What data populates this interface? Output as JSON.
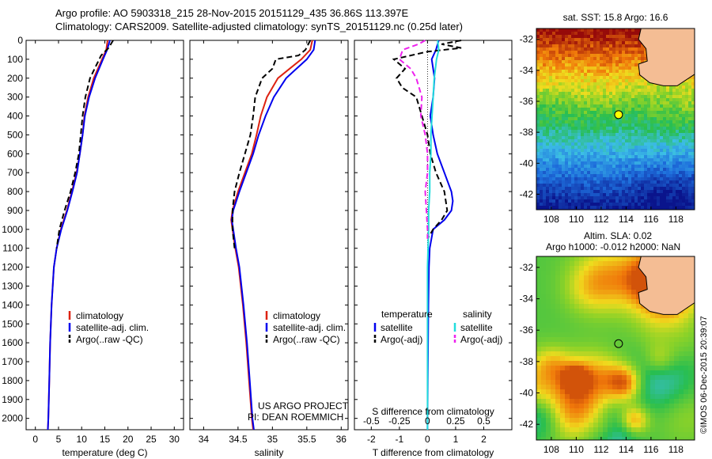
{
  "header": {
    "line1": "Argo profile: AO 5903318_215 28-Nov-2015 20151129_435 36.86S 113.397E",
    "line2": "Climatology: CARS2009. Satellite-adjusted climatology: synTS_20151129.nc (0.25d later)"
  },
  "colors": {
    "climatology": "#dd2211",
    "satellite": "#0000ee",
    "argo": "#000000",
    "salinity_satellite": "#22dddd",
    "salinity_argo": "#ee22ee",
    "land": "#f4bd94"
  },
  "chart_data": [
    {
      "type": "line",
      "id": "temperature_profile",
      "xlabel": "temperature (deg C)",
      "ylabel": "",
      "xlim": [
        -2,
        32
      ],
      "ylim": [
        2060,
        0
      ],
      "xticks": [
        0,
        5,
        10,
        15,
        20,
        25,
        30
      ],
      "yticks": [
        0,
        100,
        200,
        300,
        400,
        500,
        600,
        700,
        800,
        900,
        1000,
        1100,
        1200,
        1300,
        1400,
        1500,
        1600,
        1700,
        1800,
        1900,
        2000
      ],
      "legend_position": "lower-center",
      "series": [
        {
          "name": "climatology",
          "color_key": "climatology",
          "dash": "solid",
          "depth": [
            0,
            50,
            100,
            200,
            300,
            400,
            500,
            600,
            700,
            800,
            900,
            1000,
            1100,
            1200,
            1400,
            1600,
            1800,
            2000,
            2060
          ],
          "values": [
            15.6,
            15.3,
            14.4,
            12.6,
            11.4,
            10.6,
            10.2,
            9.6,
            8.9,
            7.9,
            6.8,
            5.5,
            4.6,
            4.0,
            3.5,
            3.2,
            3.0,
            2.8,
            2.7
          ]
        },
        {
          "name": "satellite-adj. clim.",
          "color_key": "satellite",
          "dash": "solid",
          "depth": [
            0,
            50,
            100,
            200,
            300,
            400,
            500,
            600,
            700,
            800,
            900,
            1000,
            1100,
            1200,
            1400,
            1600,
            1800,
            2000,
            2060
          ],
          "values": [
            16.1,
            15.5,
            14.6,
            12.9,
            11.6,
            10.7,
            10.2,
            9.6,
            9.0,
            8.0,
            6.9,
            5.6,
            4.6,
            4.0,
            3.5,
            3.2,
            3.0,
            2.8,
            2.7
          ]
        },
        {
          "name": "Argo(..raw -QC)",
          "color_key": "argo",
          "dash": "dashed",
          "depth": [
            0,
            40,
            80,
            150,
            200,
            300,
            400,
            500,
            600,
            700,
            800,
            900,
            1000,
            1100
          ],
          "values": [
            16.8,
            15.8,
            14.2,
            12.8,
            11.8,
            10.8,
            10.2,
            9.8,
            9.4,
            8.6,
            7.6,
            6.3,
            5.2,
            4.6
          ]
        }
      ]
    },
    {
      "type": "line",
      "id": "salinity_profile",
      "xlabel": "salinity",
      "ylabel": "",
      "xlim": [
        33.8,
        36.1
      ],
      "ylim": [
        2060,
        0
      ],
      "xticks": [
        34,
        34.5,
        35,
        35.5,
        36
      ],
      "legend_position": "lower-center",
      "series": [
        {
          "name": "climatology",
          "color_key": "climatology",
          "dash": "solid",
          "depth": [
            0,
            50,
            100,
            150,
            200,
            300,
            400,
            500,
            600,
            700,
            800,
            900,
            950,
            1000,
            1100,
            1200,
            1400,
            1600,
            1800,
            2000,
            2060
          ],
          "values": [
            35.58,
            35.55,
            35.42,
            35.25,
            35.08,
            34.92,
            34.83,
            34.77,
            34.7,
            34.6,
            34.5,
            34.42,
            34.4,
            34.42,
            34.46,
            34.51,
            34.57,
            34.62,
            34.66,
            34.7,
            34.72
          ]
        },
        {
          "name": "satellite-adj. clim.",
          "color_key": "satellite",
          "dash": "solid",
          "depth": [
            0,
            50,
            100,
            150,
            200,
            300,
            400,
            500,
            600,
            700,
            800,
            900,
            950,
            1000,
            1100,
            1200,
            1400,
            1600,
            1800,
            2000,
            2060
          ],
          "values": [
            35.62,
            35.6,
            35.5,
            35.35,
            35.2,
            35.02,
            34.9,
            34.8,
            34.72,
            34.62,
            34.52,
            34.43,
            34.41,
            34.43,
            34.47,
            34.52,
            34.58,
            34.63,
            34.67,
            34.71,
            34.73
          ]
        },
        {
          "name": "Argo(..raw -QC)",
          "color_key": "argo",
          "dash": "dashed",
          "depth": [
            0,
            50,
            80,
            100,
            150,
            200,
            300,
            400,
            500,
            600,
            700,
            800,
            900,
            1000,
            1100
          ],
          "values": [
            35.55,
            35.48,
            35.38,
            35.05,
            35.0,
            34.85,
            34.75,
            34.72,
            34.68,
            34.6,
            34.52,
            34.45,
            34.42,
            34.42,
            34.45
          ]
        }
      ]
    },
    {
      "type": "line",
      "id": "difference_profile",
      "xlabel": "T difference from climatology",
      "xlabel_top": "S difference from climatology",
      "ylabel": "",
      "xlim": [
        -2.6,
        3.0
      ],
      "ylim": [
        2060,
        0
      ],
      "xticks": [
        -2,
        -1,
        0,
        1,
        2
      ],
      "s_xticks": [
        -0.5,
        -0.25,
        0,
        0.25,
        0.5
      ],
      "s_xticks_text": [
        "-0.5",
        "-0.25",
        "0",
        "0.25",
        "0.5"
      ],
      "legend_position": "lower-center",
      "legend_headers": [
        "temperature",
        "salinity"
      ],
      "series": [
        {
          "name": "satellite",
          "group": "temperature",
          "color_key": "satellite",
          "dash": "solid",
          "depth": [
            0,
            50,
            100,
            200,
            300,
            400,
            500,
            600,
            700,
            800,
            850,
            900,
            950,
            1000,
            1100,
            1200,
            1400,
            1600,
            1800,
            2000,
            2060
          ],
          "values": [
            0.4,
            0.3,
            0.15,
            0.25,
            0.2,
            0.1,
            0.2,
            0.35,
            0.6,
            0.85,
            0.9,
            0.85,
            0.6,
            0.2,
            0.08,
            0.05,
            0.03,
            0.02,
            0.01,
            0.0,
            0.0
          ]
        },
        {
          "name": "Argo(-adj)",
          "group": "temperature",
          "color_key": "argo",
          "dash": "dashed",
          "depth": [
            0,
            20,
            40,
            60,
            100,
            150,
            200,
            250,
            300,
            400,
            500,
            600,
            700,
            800,
            900,
            950,
            1000,
            1050
          ],
          "values": [
            1.2,
            0.5,
            1.2,
            0.0,
            -1.2,
            -0.8,
            -1.1,
            -0.9,
            -0.4,
            -0.2,
            0.0,
            0.1,
            0.3,
            0.6,
            0.7,
            0.5,
            0.2,
            0.0
          ]
        },
        {
          "name": "satellite",
          "group": "salinity",
          "color_key": "salinity_satellite",
          "dash": "solid",
          "depth": [
            0,
            50,
            100,
            200,
            300,
            400,
            500,
            600,
            700,
            800,
            900,
            1000,
            1200,
            1400,
            1600,
            1800,
            2000,
            2060
          ],
          "values": [
            0.09,
            0.1,
            0.08,
            0.06,
            0.05,
            0.04,
            0.03,
            0.03,
            0.02,
            0.02,
            0.01,
            0.01,
            0.0,
            0.0,
            0.0,
            0.0,
            0.0,
            0.0
          ]
        },
        {
          "name": "Argo(-adj)",
          "group": "salinity",
          "color_key": "salinity_argo",
          "dash": "dashed",
          "depth": [
            0,
            20,
            50,
            100,
            150,
            200,
            300,
            400,
            500,
            600,
            700,
            800,
            900,
            1000,
            1050
          ],
          "values": [
            -0.02,
            -0.08,
            -0.22,
            -0.25,
            -0.15,
            -0.1,
            -0.05,
            -0.06,
            -0.02,
            0.0,
            0.0,
            -0.02,
            -0.01,
            0.0,
            0.0
          ]
        }
      ]
    },
    {
      "type": "heatmap",
      "id": "sst_map",
      "title": "sat. SST: 15.8  Argo: 16.6",
      "xticks": [
        108,
        110,
        112,
        114,
        116,
        118
      ],
      "yticks": [
        -32,
        -34,
        -36,
        -38,
        -40,
        -42
      ],
      "xlim": [
        106.8,
        119.5
      ],
      "ylim": [
        -43,
        -31.3
      ],
      "marker": {
        "lon": 113.397,
        "lat": -36.86
      }
    },
    {
      "type": "heatmap",
      "id": "sla_map",
      "title_line1": "Altim. SLA: 0.02",
      "title_line2": "Argo h1000: -0.012 h2000: NaN",
      "xticks": [
        108,
        110,
        112,
        114,
        116,
        118
      ],
      "yticks": [
        -32,
        -34,
        -36,
        -38,
        -40,
        -42
      ],
      "xlim": [
        106.8,
        119.5
      ],
      "ylim": [
        -43,
        -31.3
      ],
      "marker": {
        "lon": 113.397,
        "lat": -36.86
      }
    }
  ],
  "annotations": {
    "project_line1": "US ARGO PROJECT",
    "project_line2": "PI: DEAN ROEMMICH",
    "credit": "©IMOS 06-Dec-2015 20:39:07"
  }
}
